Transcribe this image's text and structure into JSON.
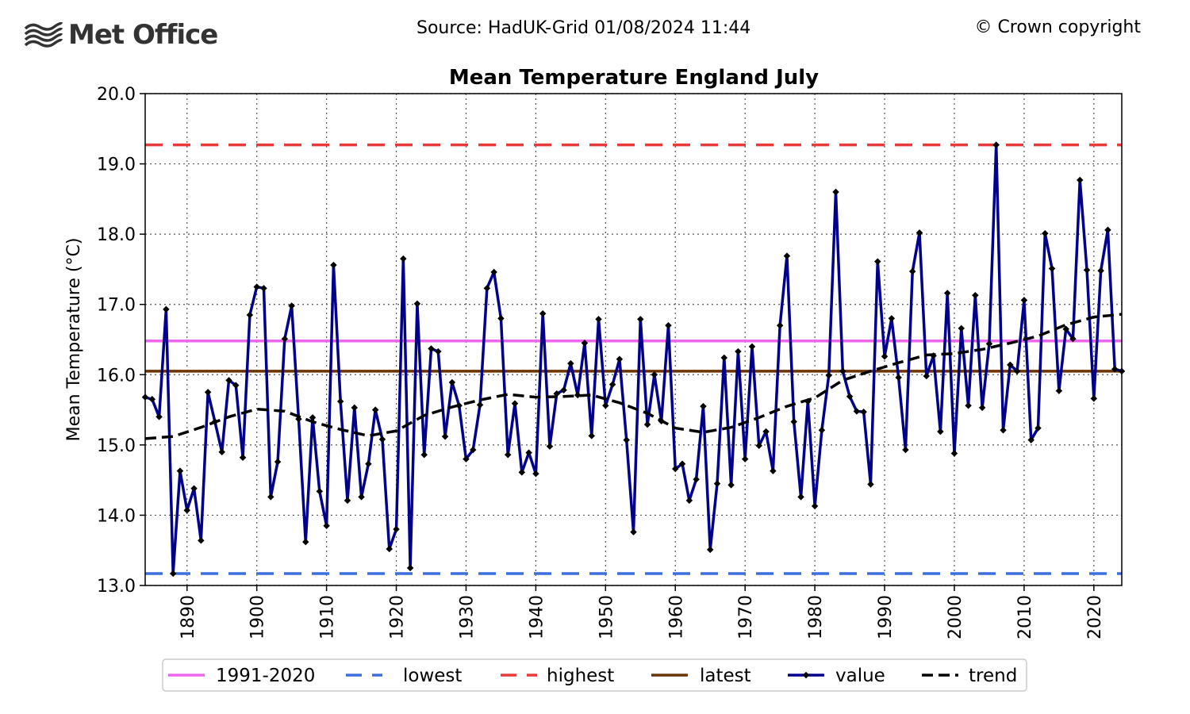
{
  "header": {
    "logo_text": "Met Office",
    "source": "Source: HadUK-Grid 01/08/2024 11:44",
    "copyright": "© Crown copyright"
  },
  "colors": {
    "baseline": "#ee66ee",
    "lowest": "#3b6fe0",
    "highest": "#e83a3a",
    "latest": "#6b3300",
    "value": "#00008b",
    "trend": "#000000"
  },
  "chart_data": {
    "type": "line",
    "title": "Mean Temperature England July",
    "xlabel": "",
    "ylabel": "Mean Temperature (°C)",
    "xlim": [
      1884,
      2024
    ],
    "ylim": [
      13.0,
      20.0
    ],
    "x_ticks": [
      1890,
      1900,
      1910,
      1920,
      1930,
      1940,
      1950,
      1960,
      1970,
      1980,
      1990,
      2000,
      2010,
      2020
    ],
    "y_ticks": [
      "13.0",
      "14.0",
      "15.0",
      "16.0",
      "17.0",
      "18.0",
      "19.0",
      "20.0"
    ],
    "grid": true,
    "legend_position": "bottom",
    "reference_lines": [
      {
        "name": "1991-2020",
        "value": 16.48,
        "style": "solid"
      },
      {
        "name": "lowest",
        "value": 13.17,
        "style": "dashed"
      },
      {
        "name": "highest",
        "value": 19.27,
        "style": "dashed"
      },
      {
        "name": "latest",
        "value": 16.05,
        "style": "solid"
      }
    ],
    "series": [
      {
        "name": "value",
        "x_start": 1884,
        "values": [
          15.68,
          15.65,
          15.4,
          16.93,
          13.17,
          14.63,
          14.07,
          14.38,
          13.64,
          15.75,
          15.33,
          14.9,
          15.92,
          15.85,
          14.82,
          16.85,
          17.25,
          17.23,
          14.26,
          14.76,
          16.51,
          16.98,
          15.37,
          13.62,
          15.39,
          14.34,
          13.85,
          17.56,
          15.62,
          14.21,
          15.53,
          14.26,
          14.73,
          15.5,
          15.08,
          13.52,
          13.8,
          17.65,
          13.25,
          17.01,
          14.86,
          16.37,
          16.33,
          15.12,
          15.89,
          15.56,
          14.8,
          14.93,
          15.57,
          17.23,
          17.46,
          16.8,
          14.86,
          15.59,
          14.61,
          14.89,
          14.59,
          16.87,
          14.98,
          15.73,
          15.78,
          16.16,
          15.71,
          16.45,
          15.13,
          16.79,
          15.56,
          15.86,
          16.22,
          15.07,
          13.76,
          16.79,
          15.29,
          16.0,
          15.34,
          16.7,
          14.66,
          14.73,
          14.21,
          14.51,
          15.55,
          13.51,
          14.45,
          16.24,
          14.43,
          16.33,
          14.8,
          16.4,
          14.99,
          15.19,
          14.63,
          16.7,
          17.69,
          15.33,
          14.26,
          15.62,
          14.13,
          15.21,
          15.99,
          18.6,
          16.05,
          15.69,
          15.48,
          15.47,
          14.44,
          17.61,
          16.26,
          16.8,
          15.96,
          14.93,
          17.47,
          18.02,
          15.98,
          16.27,
          15.19,
          17.16,
          14.88,
          16.66,
          15.56,
          17.13,
          15.53,
          16.44,
          19.27,
          15.21,
          16.14,
          16.05,
          17.06,
          15.07,
          15.24,
          18.01,
          17.51,
          15.77,
          16.65,
          16.51,
          18.77,
          17.49,
          15.66,
          17.48,
          18.06,
          16.08,
          16.05
        ]
      },
      {
        "name": "trend",
        "x": [
          1884,
          1888,
          1892,
          1896,
          1900,
          1904,
          1908,
          1912,
          1916,
          1920,
          1924,
          1928,
          1932,
          1936,
          1940,
          1944,
          1948,
          1952,
          1956,
          1960,
          1964,
          1968,
          1972,
          1976,
          1980,
          1984,
          1988,
          1992,
          1996,
          2000,
          2004,
          2008,
          2012,
          2016,
          2020,
          2024
        ],
        "values": [
          15.09,
          15.12,
          15.25,
          15.4,
          15.51,
          15.48,
          15.33,
          15.22,
          15.13,
          15.2,
          15.42,
          15.54,
          15.64,
          15.72,
          15.68,
          15.69,
          15.71,
          15.6,
          15.45,
          15.24,
          15.18,
          15.25,
          15.39,
          15.55,
          15.67,
          15.92,
          16.05,
          16.17,
          16.28,
          16.3,
          16.36,
          16.45,
          16.55,
          16.71,
          16.82,
          16.86
        ]
      }
    ]
  }
}
